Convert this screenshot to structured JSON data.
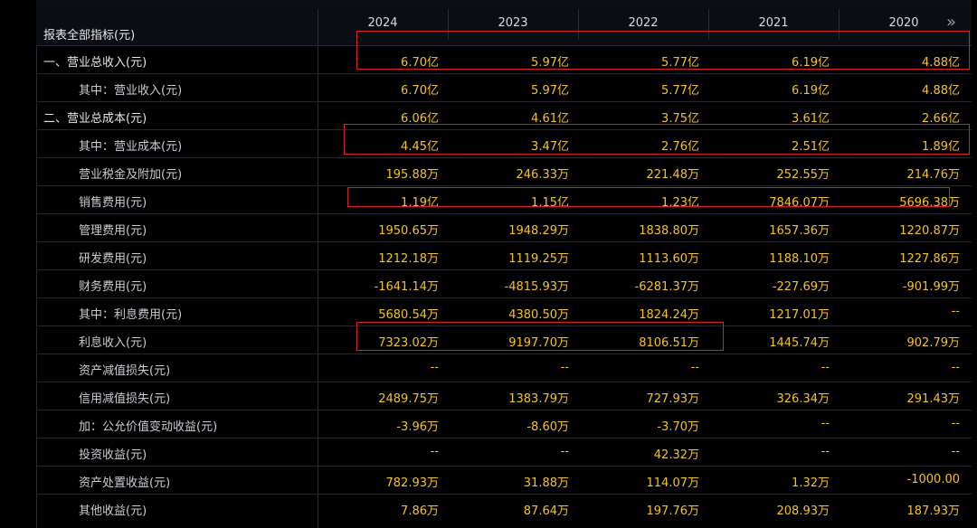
{
  "table": {
    "header_label": "报表全部指标(元)",
    "years": [
      "2024",
      "2023",
      "2022",
      "2021",
      "2020"
    ],
    "rows": [
      {
        "label": "一、营业总收入(元)",
        "indent": false,
        "values": [
          "6.70亿",
          "5.97亿",
          "5.77亿",
          "6.19亿",
          "4.88亿"
        ]
      },
      {
        "label": "其中：营业收入(元)",
        "indent": true,
        "values": [
          "6.70亿",
          "5.97亿",
          "5.77亿",
          "6.19亿",
          "4.88亿"
        ]
      },
      {
        "label": "二、营业总成本(元)",
        "indent": false,
        "values": [
          "6.06亿",
          "4.61亿",
          "3.75亿",
          "3.61亿",
          "2.66亿"
        ]
      },
      {
        "label": "其中：营业成本(元)",
        "indent": true,
        "values": [
          "4.45亿",
          "3.47亿",
          "2.76亿",
          "2.51亿",
          "1.89亿"
        ]
      },
      {
        "label": "营业税金及附加(元)",
        "indent": true,
        "values": [
          "195.88万",
          "246.33万",
          "221.48万",
          "252.55万",
          "214.76万"
        ]
      },
      {
        "label": "销售费用(元)",
        "indent": true,
        "values": [
          "1.19亿",
          "1.15亿",
          "1.23亿",
          "7846.07万",
          "5696.38万"
        ]
      },
      {
        "label": "管理费用(元)",
        "indent": true,
        "values": [
          "1950.65万",
          "1948.29万",
          "1838.80万",
          "1657.36万",
          "1220.87万"
        ]
      },
      {
        "label": "研发费用(元)",
        "indent": true,
        "values": [
          "1212.18万",
          "1119.25万",
          "1113.60万",
          "1188.10万",
          "1227.86万"
        ]
      },
      {
        "label": "财务费用(元)",
        "indent": true,
        "values": [
          "-1641.14万",
          "-4815.93万",
          "-6281.37万",
          "-227.69万",
          "-901.99万"
        ]
      },
      {
        "label": "其中：利息费用(元)",
        "indent": true,
        "values": [
          "5680.54万",
          "4380.50万",
          "1824.24万",
          "1217.01万",
          "--"
        ]
      },
      {
        "label": "利息收入(元)",
        "indent": true,
        "values": [
          "7323.02万",
          "9197.70万",
          "8106.51万",
          "1445.74万",
          "902.79万"
        ]
      },
      {
        "label": "资产减值损失(元)",
        "indent": true,
        "values": [
          "--",
          "--",
          "--",
          "--",
          "--"
        ]
      },
      {
        "label": "信用减值损失(元)",
        "indent": true,
        "values": [
          "2489.75万",
          "1383.79万",
          "727.93万",
          "326.34万",
          "291.43万"
        ]
      },
      {
        "label": "加：公允价值变动收益(元)",
        "indent": true,
        "values": [
          "-3.96万",
          "-8.60万",
          "-3.70万",
          "--",
          "--"
        ]
      },
      {
        "label": "投资收益(元)",
        "indent": true,
        "values": [
          "--",
          "--",
          "42.32万",
          "--",
          "--"
        ]
      },
      {
        "label": "资产处置收益(元)",
        "indent": true,
        "values": [
          "782.93万",
          "31.88万",
          "114.07万",
          "1.32万",
          "-1000.00"
        ]
      },
      {
        "label": "其他收益(元)",
        "indent": true,
        "values": [
          "7.86万",
          "87.64万",
          "197.76万",
          "208.93万",
          "187.93万"
        ]
      }
    ]
  },
  "colors": {
    "value": "#f7c31e",
    "highlight_box": "#e01e25"
  },
  "icons": {
    "more": "double-chevron-right-icon"
  }
}
